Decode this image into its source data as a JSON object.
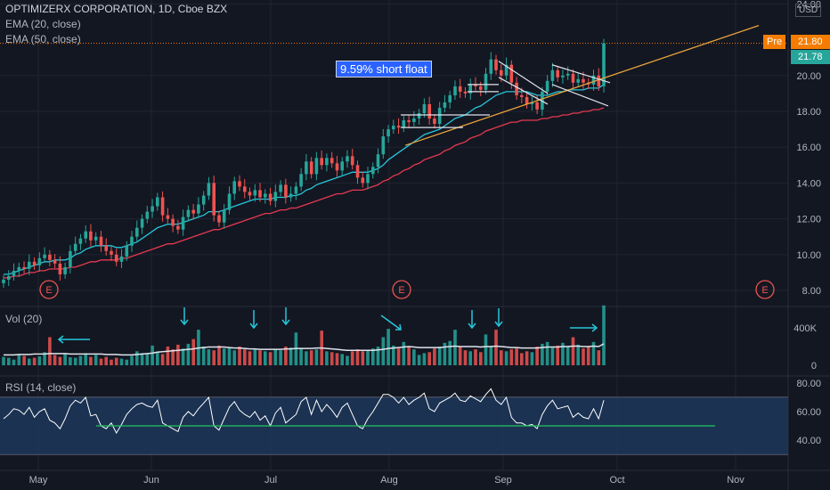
{
  "header": {
    "title": "OPTIMIZERX CORPORATION, 1D, Cboe BZX",
    "ema20": "EMA (20, close)",
    "ema50": "EMA (50, close)"
  },
  "annotation": "9.59% short float",
  "currency": "USD",
  "price_badges": {
    "pre_label": "Pre",
    "pre_value": "21.80",
    "last_value": "21.78"
  },
  "earnings_marker": "E",
  "volume_label": "Vol (20)",
  "rsi_label": "RSI (14, close)",
  "colors": {
    "up": "#26a69a",
    "down": "#ef5350",
    "ema20": "#26c6da",
    "ema50": "#e53950",
    "trend": "#e8a33d",
    "rsi": "#ffffff",
    "rsi_band": "#1e3a5f",
    "rsi_support": "#22c55e",
    "arrow": "#26c6da",
    "pre_badge": "#f57c00",
    "last_badge": "#26a69a"
  },
  "chart_data": [
    {
      "type": "candlestick",
      "title": "OPTIMIZERX CORPORATION, 1D, Cboe BZX",
      "x_ticks": [
        "May",
        "Jun",
        "Jul",
        "Aug",
        "Sep",
        "Oct",
        "Nov"
      ],
      "y_ticks": [
        "8.00",
        "10.00",
        "12.00",
        "14.00",
        "16.00",
        "18.00",
        "20.00",
        "24.00"
      ],
      "ylim": [
        7.2,
        24.2
      ],
      "close": [
        8.6,
        8.8,
        9.1,
        9.3,
        9.2,
        9.6,
        9.4,
        9.8,
        10.0,
        9.7,
        9.5,
        8.9,
        9.3,
        10.2,
        10.6,
        10.9,
        11.3,
        10.8,
        11.0,
        10.5,
        10.2,
        10.0,
        9.6,
        9.9,
        10.5,
        11.0,
        11.5,
        12.0,
        12.4,
        12.7,
        13.2,
        12.2,
        12.0,
        11.6,
        11.4,
        12.1,
        12.5,
        12.3,
        12.8,
        13.3,
        14.0,
        12.2,
        11.8,
        12.5,
        13.4,
        14.1,
        13.8,
        13.5,
        13.3,
        13.6,
        13.2,
        13.4,
        13.0,
        13.5,
        13.9,
        13.2,
        13.4,
        13.8,
        14.5,
        15.2,
        14.5,
        15.4,
        15.0,
        15.4,
        15.1,
        14.7,
        15.2,
        15.5,
        15.0,
        14.3,
        14.0,
        14.5,
        14.9,
        15.6,
        16.6,
        17.0,
        17.2,
        17.1,
        17.5,
        17.4,
        17.6,
        17.9,
        18.4,
        17.6,
        17.3,
        18.2,
        18.5,
        18.9,
        19.4,
        19.1,
        19.0,
        19.5,
        19.4,
        19.2,
        20.1,
        20.9,
        20.3,
        20.0,
        20.6,
        19.6,
        18.9,
        18.8,
        18.4,
        18.5,
        18.1,
        19.1,
        19.7,
        20.3,
        19.9,
        20.0,
        20.1,
        19.6,
        19.8,
        19.6,
        19.5,
        20.0,
        19.4,
        21.8
      ],
      "ema_20": [
        8.9,
        8.9,
        9.0,
        9.1,
        9.2,
        9.3,
        9.4,
        9.5,
        9.6,
        9.6,
        9.7,
        9.7,
        9.7,
        9.8,
        10.0,
        10.1,
        10.3,
        10.4,
        10.5,
        10.5,
        10.5,
        10.5,
        10.4,
        10.4,
        10.5,
        10.6,
        10.7,
        10.9,
        11.1,
        11.3,
        11.5,
        11.6,
        11.7,
        11.7,
        11.7,
        11.8,
        11.9,
        12.0,
        12.1,
        12.2,
        12.4,
        12.4,
        12.4,
        12.5,
        12.6,
        12.7,
        12.8,
        12.9,
        13.0,
        13.1,
        13.1,
        13.1,
        13.1,
        13.2,
        13.2,
        13.2,
        13.3,
        13.3,
        13.4,
        13.6,
        13.7,
        13.9,
        14.0,
        14.1,
        14.2,
        14.3,
        14.4,
        14.5,
        14.6,
        14.6,
        14.6,
        14.6,
        14.7,
        14.8,
        15.0,
        15.3,
        15.5,
        15.7,
        15.9,
        16.1,
        16.3,
        16.5,
        16.7,
        16.8,
        16.9,
        17.0,
        17.2,
        17.4,
        17.6,
        17.7,
        17.8,
        18.0,
        18.2,
        18.3,
        18.5,
        18.7,
        18.9,
        19.0,
        19.1,
        19.1,
        19.1,
        19.1,
        19.1,
        19.0,
        18.9,
        18.9,
        18.9,
        19.0,
        19.1,
        19.1,
        19.2,
        19.2,
        19.2,
        19.2,
        19.3,
        19.3,
        19.3,
        19.5
      ],
      "ema_50": [
        8.7,
        8.7,
        8.8,
        8.8,
        8.9,
        9.0,
        9.0,
        9.1,
        9.1,
        9.2,
        9.2,
        9.2,
        9.2,
        9.3,
        9.3,
        9.4,
        9.5,
        9.6,
        9.6,
        9.7,
        9.7,
        9.7,
        9.7,
        9.8,
        9.8,
        9.9,
        10.0,
        10.1,
        10.2,
        10.3,
        10.4,
        10.5,
        10.6,
        10.6,
        10.7,
        10.8,
        10.9,
        11.0,
        11.1,
        11.2,
        11.3,
        11.4,
        11.4,
        11.5,
        11.6,
        11.7,
        11.8,
        11.9,
        12.0,
        12.1,
        12.2,
        12.3,
        12.3,
        12.4,
        12.5,
        12.5,
        12.6,
        12.6,
        12.7,
        12.8,
        12.9,
        13.0,
        13.1,
        13.2,
        13.3,
        13.4,
        13.4,
        13.5,
        13.6,
        13.6,
        13.6,
        13.7,
        13.8,
        13.9,
        14.1,
        14.2,
        14.4,
        14.5,
        14.7,
        14.8,
        15.0,
        15.1,
        15.3,
        15.4,
        15.5,
        15.6,
        15.8,
        15.9,
        16.1,
        16.2,
        16.3,
        16.5,
        16.6,
        16.7,
        16.9,
        17.0,
        17.1,
        17.2,
        17.3,
        17.4,
        17.4,
        17.5,
        17.5,
        17.5,
        17.5,
        17.6,
        17.6,
        17.7,
        17.7,
        17.8,
        17.8,
        17.9,
        17.9,
        18.0,
        18.0,
        18.1,
        18.1,
        18.2
      ]
    },
    {
      "type": "bar",
      "title": "Vol (20)",
      "y_ticks": [
        "400K",
        "0"
      ],
      "ylim": [
        0,
        680000
      ],
      "values": [
        90000,
        80000,
        60000,
        120000,
        100000,
        70000,
        80000,
        95000,
        140000,
        300000,
        110000,
        90000,
        130000,
        85000,
        80000,
        100000,
        130000,
        90000,
        110000,
        70000,
        90000,
        60000,
        80000,
        70000,
        60000,
        100000,
        150000,
        130000,
        120000,
        210000,
        140000,
        120000,
        200000,
        170000,
        220000,
        180000,
        230000,
        280000,
        380000,
        200000,
        170000,
        160000,
        210000,
        180000,
        190000,
        160000,
        200000,
        170000,
        150000,
        180000,
        160000,
        150000,
        140000,
        170000,
        160000,
        200000,
        190000,
        350000,
        180000,
        150000,
        160000,
        170000,
        370000,
        150000,
        140000,
        130000,
        120000,
        100000,
        150000,
        170000,
        150000,
        160000,
        180000,
        200000,
        300000,
        390000,
        210000,
        180000,
        250000,
        200000,
        170000,
        110000,
        130000,
        140000,
        180000,
        200000,
        240000,
        260000,
        380000,
        200000,
        160000,
        150000,
        170000,
        140000,
        330000,
        200000,
        380000,
        160000,
        150000,
        170000,
        180000,
        130000,
        150000,
        140000,
        200000,
        230000,
        250000,
        190000,
        210000,
        240000,
        200000,
        300000,
        220000,
        180000,
        200000,
        250000,
        160000,
        640000
      ],
      "ma_20": [
        110000,
        110000,
        110000,
        115000,
        115000,
        115000,
        120000,
        120000,
        120000,
        125000,
        125000,
        125000,
        125000,
        120000,
        120000,
        120000,
        120000,
        120000,
        120000,
        120000,
        115000,
        115000,
        115000,
        110000,
        110000,
        110000,
        115000,
        120000,
        125000,
        130000,
        140000,
        145000,
        150000,
        155000,
        160000,
        165000,
        170000,
        175000,
        185000,
        190000,
        195000,
        195000,
        195000,
        195000,
        190000,
        185000,
        185000,
        180000,
        175000,
        175000,
        170000,
        170000,
        170000,
        170000,
        170000,
        175000,
        175000,
        180000,
        180000,
        180000,
        180000,
        185000,
        185000,
        180000,
        175000,
        170000,
        165000,
        160000,
        160000,
        160000,
        160000,
        160000,
        160000,
        165000,
        170000,
        180000,
        185000,
        190000,
        195000,
        200000,
        195000,
        190000,
        190000,
        190000,
        190000,
        190000,
        195000,
        200000,
        205000,
        200000,
        200000,
        200000,
        200000,
        195000,
        200000,
        200000,
        205000,
        200000,
        195000,
        190000,
        190000,
        185000,
        185000,
        185000,
        185000,
        190000,
        195000,
        195000,
        195000,
        200000,
        200000,
        205000,
        205000,
        200000,
        200000,
        205000,
        200000,
        230000
      ]
    },
    {
      "type": "line",
      "title": "RSI (14, close)",
      "y_ticks": [
        "80.00",
        "60.00",
        "40.00"
      ],
      "ylim": [
        28,
        84
      ],
      "values": [
        55,
        58,
        62,
        61,
        58,
        63,
        56,
        60,
        62,
        54,
        52,
        48,
        55,
        64,
        68,
        66,
        70,
        57,
        58,
        50,
        48,
        52,
        45,
        51,
        58,
        62,
        65,
        66,
        64,
        63,
        68,
        52,
        50,
        48,
        46,
        56,
        60,
        57,
        62,
        66,
        70,
        50,
        47,
        55,
        63,
        67,
        61,
        58,
        56,
        60,
        54,
        57,
        50,
        59,
        63,
        52,
        55,
        58,
        67,
        70,
        58,
        68,
        60,
        65,
        61,
        56,
        63,
        66,
        58,
        50,
        48,
        55,
        60,
        66,
        72,
        72,
        70,
        66,
        70,
        65,
        68,
        70,
        73,
        62,
        60,
        66,
        68,
        70,
        73,
        68,
        67,
        71,
        69,
        67,
        72,
        76,
        68,
        65,
        70,
        56,
        52,
        52,
        50,
        51,
        48,
        58,
        64,
        68,
        62,
        63,
        64,
        56,
        59,
        56,
        55,
        62,
        55,
        68
      ]
    }
  ]
}
